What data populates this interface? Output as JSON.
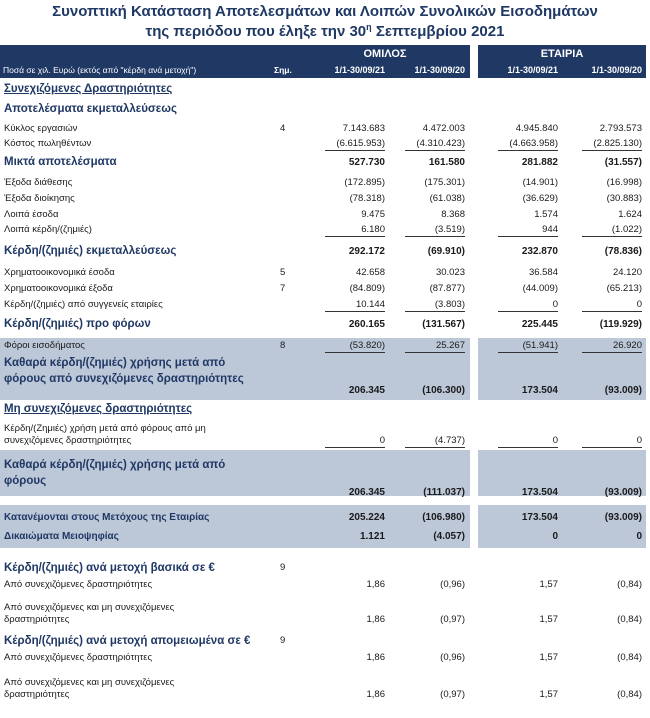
{
  "header": {
    "title_line1": "Συνοπτική Κατάσταση Αποτελεσμάτων και Λοιπών Συνολικών Εισοδημάτων",
    "title_line2": [
      "της περιόδου που έληξε την 30",
      "η",
      " Σεπτεμβρίου 2021"
    ],
    "unit_note": "Ποσά σε χιλ. Ευρώ (εκτός από \"κέρδη ανά μετοχή\")",
    "note_col": "Σημ.",
    "groups": [
      "ΟΜΙΛΟΣ",
      "ΕΤΑΙΡΙΑ"
    ],
    "periods": [
      "1/1-30/09/21",
      "1/1-30/09/20",
      "1/1-30/09/21",
      "1/1-30/09/20"
    ]
  },
  "table": {
    "rows": [
      {
        "label": [
          "Συνεχιζόμενες Δραστηριότητες"
        ]
      },
      {
        "label": [
          "Αποτελέσματα εκμεταλλεύσεως"
        ]
      },
      {
        "label": [
          "Κύκλος εργασιών"
        ],
        "note": "4",
        "values": [
          "7.143.683",
          "4.472.003",
          "4.945.840",
          "2.793.573"
        ]
      },
      {
        "label": [
          "Κόστος πωληθέντων"
        ],
        "values": [
          "(6.615.953)",
          "(4.310.423)",
          "(4.663.958)",
          "(2.825.130)"
        ]
      },
      {
        "label": [
          "Μικτά αποτελέσματα"
        ],
        "values": [
          "527.730",
          "161.580",
          "281.882",
          "(31.557)"
        ]
      },
      {
        "label": [
          "Έξοδα διάθεσης"
        ],
        "values": [
          "(172.895)",
          "(175.301)",
          "(14.901)",
          "(16.998)"
        ]
      },
      {
        "label": [
          "Έξοδα διοίκησης"
        ],
        "values": [
          "(78.318)",
          "(61.038)",
          "(36.629)",
          "(30.883)"
        ]
      },
      {
        "label": [
          "Λοιπά έσοδα"
        ],
        "values": [
          "9.475",
          "8.368",
          "1.574",
          "1.624"
        ]
      },
      {
        "label": [
          "Λοιπά κέρδη/(ζημιές)"
        ],
        "values": [
          "6.180",
          "(3.519)",
          "944",
          "(1.022)"
        ]
      },
      {
        "label": [
          "Κέρδη/(ζημιές) εκμεταλλεύσεως"
        ],
        "values": [
          "292.172",
          "(69.910)",
          "232.870",
          "(78.836)"
        ]
      },
      {
        "label": [
          "Χρηματοοικονομικά έσοδα"
        ],
        "note": "5",
        "values": [
          "42.658",
          "30.023",
          "36.584",
          "24.120"
        ]
      },
      {
        "label": [
          "Χρηματοοικονομικά έξοδα"
        ],
        "note": "7",
        "values": [
          "(84.809)",
          "(87.877)",
          "(44.009)",
          "(65.213)"
        ]
      },
      {
        "label": [
          "Κέρδη/(ζημιές) από συγγενείς εταιρίες"
        ],
        "values": [
          "10.144",
          "(3.803)",
          "0",
          "0"
        ]
      },
      {
        "label": [
          "Κέρδη/(ζημιές) προ φόρων"
        ],
        "values": [
          "260.165",
          "(131.567)",
          "225.445",
          "(119.929)"
        ]
      },
      {
        "label": [
          "Φόροι εισοδήματος"
        ],
        "note": "8",
        "values": [
          "(53.820)",
          "25.267",
          "(51.941)",
          "26.920"
        ]
      },
      {
        "label": [
          "Καθαρά κέρδη/(ζημιές) χρήσης μετά από",
          "φόρους από συνεχιζόμενες δραστηριότητες"
        ],
        "values": [
          "206.345",
          "(106.300)",
          "173.504",
          "(93.009)"
        ]
      },
      {
        "label": [
          "Μη συνεχιζόμενες δραστηριότητες"
        ]
      },
      {
        "label": [
          "Κέρδη/(Ζημιές) χρήση μετά από φόρους από μη",
          "συνεχιζόμενες δραστηριότητες"
        ],
        "values": [
          "0",
          "(4.737)",
          "0",
          "0"
        ]
      },
      {
        "label": [
          "Καθαρά κέρδη/(ζημιές) χρήσης μετά από",
          "φόρους"
        ],
        "values": [
          "206.345",
          "(111.037)",
          "173.504",
          "(93.009)"
        ]
      },
      {
        "label": [
          "Κατανέμονται στους Μετόχους της Εταιρίας"
        ],
        "values": [
          "205.224",
          "(106.980)",
          "173.504",
          "(93.009)"
        ]
      },
      {
        "label": [
          "Δικαιώματα Μειοψηφίας"
        ],
        "values": [
          "1.121",
          "(4.057)",
          "0",
          "0"
        ]
      },
      {
        "label": [
          "Κέρδη/(ζημιές) ανά μετοχή βασικά σε €"
        ],
        "note": "9"
      },
      {
        "label": [
          "Από συνεχιζόμενες δραστηριότητες"
        ],
        "values": [
          "1,86",
          "(0,96)",
          "1,57",
          "(0,84)"
        ]
      },
      {
        "label": [
          "Από συνεχιζόμενες και μη συνεχιζόμενες",
          "δραστηριότητες"
        ],
        "values": [
          "1,86",
          "(0,97)",
          "1,57",
          "(0,84)"
        ]
      },
      {
        "label": [
          "Κέρδη/(ζημιές) ανά μετοχή απομειωμένα σε €"
        ],
        "note": "9"
      },
      {
        "label": [
          "Από συνεχιζόμενες δραστηριότητες"
        ],
        "values": [
          "1,86",
          "(0,96)",
          "1,57",
          "(0,84)"
        ]
      },
      {
        "label": [
          "Από συνεχιζόμενες και μη συνεχιζόμενες",
          "δραστηριότητες"
        ],
        "values": [
          "1,86",
          "(0,97)",
          "1,57",
          "(0,84)"
        ]
      }
    ]
  }
}
